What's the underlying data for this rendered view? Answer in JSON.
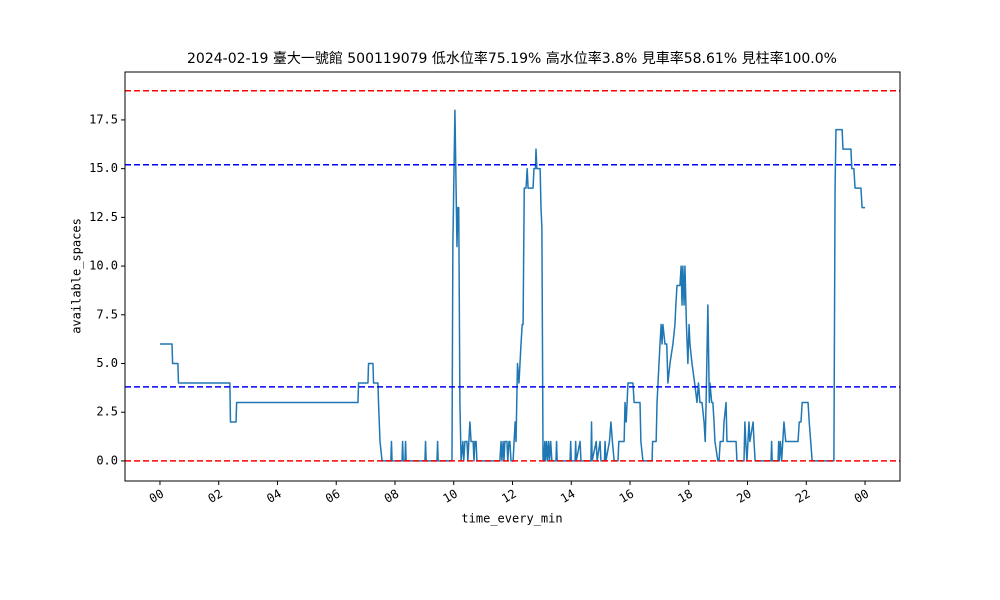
{
  "chart_data": {
    "type": "line",
    "title": "2024-02-19 臺大一號館 500119079 低水位率75.19% 高水位率3.8% 見車率58.61% 見柱率100.0%",
    "xlabel": "time_every_min",
    "ylabel": "available_spaces",
    "color": "#1f77b4",
    "x": [
      0,
      0.41,
      0.43,
      0.61,
      0.63,
      2.38,
      2.4,
      2.59,
      2.61,
      6.74,
      6.76,
      7.08,
      7.1,
      7.25,
      7.27,
      7.42,
      7.44,
      7.49,
      7.56,
      7.86,
      7.88,
      7.9,
      8.24,
      8.26,
      8.28,
      8.34,
      8.36,
      8.38,
      9.02,
      9.04,
      9.06,
      9.43,
      9.45,
      9.47,
      9.94,
      9.97,
      10.04,
      10.08,
      10.11,
      10.14,
      10.17,
      10.21,
      10.25,
      10.31,
      10.34,
      10.38,
      10.45,
      10.48,
      10.55,
      10.59,
      10.66,
      10.69,
      10.72,
      10.76,
      10.79,
      11.57,
      11.61,
      11.64,
      11.68,
      11.71,
      11.74,
      11.81,
      11.84,
      11.88,
      11.91,
      11.95,
      12.02,
      12.09,
      12.12,
      12.17,
      12.22,
      12.29,
      12.33,
      12.36,
      12.4,
      12.46,
      12.5,
      12.53,
      12.7,
      12.73,
      12.78,
      12.8,
      12.83,
      12.94,
      12.97,
      13.0,
      13.04,
      13.07,
      13.1,
      13.12,
      13.16,
      13.19,
      13.23,
      13.26,
      13.3,
      13.34,
      13.48,
      13.5,
      13.52,
      13.96,
      13.98,
      14.0,
      14.13,
      14.15,
      14.17,
      14.3,
      14.33,
      14.67,
      14.69,
      14.71,
      14.85,
      14.88,
      14.98,
      15.01,
      15.13,
      15.15,
      15.18,
      15.3,
      15.35,
      15.4,
      15.46,
      15.59,
      15.62,
      15.8,
      15.83,
      15.87,
      15.9,
      15.93,
      16.1,
      16.14,
      16.34,
      16.37,
      16.44,
      16.75,
      16.77,
      16.89,
      16.92,
      17.02,
      17.06,
      17.09,
      17.12,
      17.19,
      17.25,
      17.29,
      17.36,
      17.46,
      17.53,
      17.56,
      17.6,
      17.7,
      17.74,
      17.77,
      17.8,
      17.84,
      17.87,
      17.92,
      17.97,
      18.01,
      18.04,
      18.11,
      18.2,
      18.28,
      18.33,
      18.38,
      18.45,
      18.52,
      18.56,
      18.59,
      18.65,
      18.7,
      18.72,
      18.78,
      18.82,
      18.86,
      18.89,
      18.99,
      19.03,
      19.07,
      19.17,
      19.2,
      19.27,
      19.3,
      19.61,
      19.64,
      19.88,
      19.91,
      19.94,
      19.98,
      20.05,
      20.08,
      20.19,
      20.22,
      20.26,
      20.8,
      20.82,
      20.84,
      21.04,
      21.06,
      21.08,
      21.12,
      21.16,
      21.24,
      21.3,
      21.34,
      21.72,
      21.76,
      21.82,
      21.86,
      22.06,
      22.1,
      22.15,
      22.2,
      22.94,
      22.98,
      23.01,
      23.22,
      23.25,
      23.52,
      23.55,
      23.62,
      23.66,
      23.86,
      23.9,
      24.0
    ],
    "values": [
      6,
      6,
      5,
      5,
      4,
      4,
      2,
      2,
      3,
      3,
      4,
      4,
      5,
      5,
      4,
      4,
      3,
      1,
      0,
      0,
      1,
      0,
      0,
      1,
      0,
      0,
      1,
      0,
      0,
      1,
      0,
      0,
      1,
      0,
      0,
      11,
      18,
      14,
      11,
      13,
      13,
      3,
      0,
      1,
      0,
      1,
      1,
      0,
      2,
      1,
      1,
      0,
      1,
      1,
      0,
      0,
      1,
      0,
      1,
      0,
      1,
      1,
      0,
      1,
      1,
      0,
      0,
      2,
      1,
      5,
      4,
      6,
      7,
      7,
      14,
      14,
      15,
      14,
      14,
      15,
      15,
      16,
      15,
      15,
      13,
      12,
      0,
      0,
      1,
      0,
      1,
      0,
      1,
      0,
      1,
      0,
      0,
      1,
      0,
      0,
      1,
      0,
      0,
      1,
      0,
      1,
      0,
      0,
      2,
      0,
      1,
      0,
      1,
      0,
      0,
      1,
      0,
      1,
      2,
      1,
      0,
      0,
      1,
      1,
      3,
      2,
      3,
      4,
      4,
      3,
      3,
      1,
      0,
      0,
      1,
      1,
      3,
      6,
      7,
      6,
      7,
      6,
      6,
      4,
      5,
      6,
      7,
      8,
      9,
      9,
      10,
      8,
      10,
      8,
      10,
      7,
      5,
      7,
      6,
      5,
      4,
      3,
      4,
      3,
      3,
      2,
      1,
      3,
      8,
      3,
      4,
      3,
      3,
      2,
      1,
      0,
      0,
      1,
      1,
      2,
      3,
      1,
      1,
      0,
      0,
      2,
      1,
      0,
      2,
      1,
      2,
      1,
      0,
      0,
      1,
      0,
      0,
      1,
      0,
      1,
      0,
      2,
      1,
      1,
      1,
      2,
      2,
      3,
      3,
      2,
      1,
      0,
      0,
      14,
      17,
      17,
      16,
      16,
      15,
      15,
      14,
      14,
      13,
      13
    ],
    "hlines": [
      {
        "value": 19,
        "color": "#ff0000"
      },
      {
        "value": 15.2,
        "color": "#0000ff"
      },
      {
        "value": 3.8,
        "color": "#0000ff"
      },
      {
        "value": 0,
        "color": "#ff0000"
      }
    ],
    "xlim": [
      -1.19,
      25.19
    ],
    "xticks": [
      {
        "value": 0,
        "label": "00"
      },
      {
        "value": 2,
        "label": "02"
      },
      {
        "value": 4,
        "label": "04"
      },
      {
        "value": 6,
        "label": "06"
      },
      {
        "value": 8,
        "label": "08"
      },
      10,
      12,
      14,
      16,
      18,
      20,
      22,
      {
        "value": 24,
        "label": "00"
      }
    ],
    "ylim": [
      -1.03,
      19.96
    ],
    "yticks": [
      {
        "value": 0,
        "label": "0.0"
      },
      2.5,
      {
        "value": 5,
        "label": "5.0"
      },
      7.5,
      {
        "value": 10,
        "label": "10.0"
      },
      12.5,
      {
        "value": 15,
        "label": "15.0"
      },
      17.5
    ]
  }
}
